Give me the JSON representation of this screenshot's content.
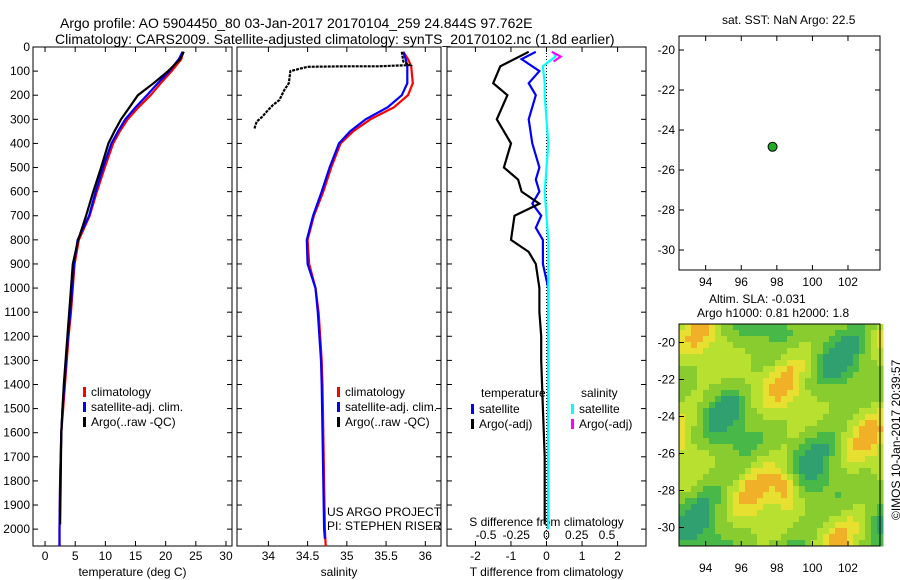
{
  "header": {
    "title_line1": "Argo profile: AO 5904450_80 03-Jan-2017 20170104_259 24.844S 97.762E",
    "title_line2": "Climatology: CARS2009. Satellite-adjusted climatology: synTS_20170102.nc (1.8d earlier)"
  },
  "colors": {
    "climatology": "#ff0000",
    "satellite": "#0000ff",
    "argo": "#000000",
    "satellite_s": "#00ffff",
    "argo_s_adj": "#ff00ff",
    "float_marker": "#22aa22"
  },
  "chart_data": [
    {
      "type": "line",
      "id": "temperature",
      "xlabel": "temperature (deg C)",
      "xlim": [
        -2,
        31
      ],
      "ylim": [
        2070,
        0
      ],
      "xticks": [
        0,
        5,
        10,
        15,
        20,
        25,
        30
      ],
      "yticks": [
        0,
        100,
        200,
        300,
        400,
        500,
        600,
        700,
        800,
        900,
        1000,
        1100,
        1200,
        1300,
        1400,
        1500,
        1600,
        1700,
        1800,
        1900,
        2000
      ],
      "legend": [
        "climatology",
        "satellite-adj. clim.",
        "Argo(..raw -QC)"
      ],
      "series": [
        {
          "name": "climatology",
          "color": "#ff0000",
          "x": [
            22.9,
            22.6,
            21.0,
            19.2,
            17.5,
            15.5,
            13.7,
            12.4,
            11.3,
            9.9,
            8.6,
            7.4,
            5.6,
            4.9,
            4.6,
            4.3,
            3.9,
            3.6,
            3.3,
            3.0,
            2.7,
            2.5,
            2.4,
            2.4
          ],
          "y": [
            20,
            50,
            100,
            150,
            200,
            250,
            300,
            350,
            400,
            500,
            600,
            700,
            800,
            900,
            1000,
            1100,
            1200,
            1300,
            1400,
            1500,
            1600,
            1800,
            2000,
            2070
          ]
        },
        {
          "name": "satellite-adj. clim.",
          "color": "#0000ff",
          "x": [
            22.8,
            22.2,
            20.6,
            18.7,
            16.9,
            15.0,
            13.3,
            12.1,
            11.0,
            9.6,
            8.4,
            7.3,
            5.4,
            4.8,
            4.5,
            4.2,
            3.8,
            3.5,
            3.2,
            2.9,
            2.7,
            2.5,
            2.4,
            2.4
          ],
          "y": [
            20,
            50,
            100,
            150,
            200,
            250,
            300,
            350,
            400,
            500,
            600,
            700,
            800,
            900,
            1000,
            1100,
            1200,
            1300,
            1400,
            1500,
            1600,
            1800,
            2000,
            2070
          ]
        },
        {
          "name": "Argo(..raw -QC)",
          "color": "#000000",
          "x": [
            23.0,
            22.4,
            20.4,
            18.0,
            15.4,
            14.0,
            12.6,
            11.5,
            10.5,
            9.3,
            8.0,
            6.8,
            5.5,
            4.6,
            4.3,
            4.0,
            3.7,
            3.4,
            3.1,
            2.9,
            2.7,
            2.6,
            2.5
          ],
          "y": [
            20,
            50,
            100,
            150,
            200,
            250,
            300,
            350,
            400,
            500,
            600,
            700,
            800,
            900,
            1000,
            1100,
            1200,
            1300,
            1400,
            1500,
            1600,
            1800,
            1980
          ]
        }
      ]
    },
    {
      "type": "line",
      "id": "salinity",
      "xlabel": "salinity",
      "xlim": [
        33.6,
        36.2
      ],
      "ylim": [
        2070,
        0
      ],
      "xticks": [
        34,
        34.5,
        35,
        35.5,
        36
      ],
      "legend": [
        "climatology",
        "satellite-adj. clim.",
        "Argo(..raw -QC)"
      ],
      "annotation": [
        "US ARGO PROJECT",
        "PI: STEPHEN RISER"
      ],
      "series": [
        {
          "name": "climatology",
          "color": "#ff0000",
          "x": [
            35.72,
            35.78,
            35.82,
            35.84,
            35.78,
            35.6,
            35.3,
            35.08,
            34.92,
            34.8,
            34.7,
            34.58,
            34.5,
            34.52,
            34.6,
            34.64,
            34.66,
            34.68,
            34.69,
            34.7,
            34.71,
            34.72,
            34.73
          ],
          "y": [
            20,
            50,
            80,
            150,
            200,
            250,
            300,
            350,
            400,
            500,
            600,
            700,
            800,
            900,
            1000,
            1100,
            1200,
            1300,
            1400,
            1600,
            1800,
            2000,
            2070
          ]
        },
        {
          "name": "satellite-adj. clim.",
          "color": "#0000ff",
          "x": [
            35.72,
            35.75,
            35.77,
            35.77,
            35.7,
            35.52,
            35.24,
            35.04,
            34.9,
            34.78,
            34.68,
            34.57,
            34.49,
            34.5,
            34.6,
            34.63,
            34.65,
            34.67,
            34.68,
            34.69,
            34.7,
            34.71,
            34.72
          ],
          "y": [
            20,
            50,
            80,
            150,
            200,
            250,
            300,
            350,
            400,
            500,
            600,
            700,
            800,
            900,
            1000,
            1100,
            1200,
            1300,
            1400,
            1600,
            1800,
            2000,
            2040
          ]
        },
        {
          "name": "Argo(..raw -QC)",
          "color": "#000000",
          "x": [
            35.7,
            35.72,
            35.8,
            35.4,
            35.0,
            34.5,
            34.28,
            34.26,
            34.2,
            34.14,
            34.06,
            34.0,
            33.92,
            33.85,
            33.82
          ],
          "y": [
            20,
            60,
            75,
            80,
            80,
            82,
            100,
            150,
            180,
            220,
            240,
            260,
            290,
            310,
            340
          ]
        }
      ]
    },
    {
      "type": "line",
      "id": "difference",
      "xlabel": "T difference from climatology",
      "x2label": "S difference from climatology",
      "xlim": [
        -2.8,
        2.8
      ],
      "ylim": [
        2070,
        0
      ],
      "xticks": [
        -2,
        -1,
        0,
        1,
        2
      ],
      "x2ticks": [
        "-0.5",
        "-0.25",
        "0",
        "0.25",
        "0.5"
      ],
      "legend_headers": [
        "temperature",
        "salinity"
      ],
      "legend": [
        "satellite",
        "Argo(-adj)",
        "satellite",
        "Argo(-adj)"
      ],
      "series": [
        {
          "name": "temperature satellite",
          "color": "#0000ff",
          "x": [
            -0.3,
            -0.7,
            -0.2,
            -0.5,
            -0.3,
            -0.5,
            -0.4,
            -0.2,
            -0.3,
            -0.2,
            -0.4,
            -0.15,
            -0.3,
            -0.1,
            -0.1,
            0.05,
            0.05,
            0.05,
            0.05,
            0.05,
            0.05,
            0.05
          ],
          "y": [
            20,
            50,
            100,
            150,
            200,
            300,
            400,
            500,
            550,
            600,
            650,
            700,
            750,
            800,
            900,
            1000,
            1100,
            1200,
            1300,
            1500,
            1800,
            2000
          ]
        },
        {
          "name": "temperature Argo(-adj)",
          "color": "#000000",
          "x": [
            -0.5,
            -1.3,
            -1.5,
            -1.1,
            -1.4,
            -1.0,
            -1.2,
            -0.8,
            -0.7,
            -0.2,
            -0.9,
            -1.0,
            -0.5,
            -0.3,
            -0.2,
            -0.2,
            -0.15,
            -0.15,
            -0.1,
            -0.05,
            -0.05,
            -0.05
          ],
          "y": [
            20,
            80,
            150,
            200,
            300,
            400,
            500,
            550,
            600,
            650,
            700,
            800,
            850,
            900,
            1000,
            1100,
            1200,
            1300,
            1500,
            1700,
            1850,
            1980
          ]
        },
        {
          "name": "salinity satellite",
          "color": "#00ffff",
          "x": [
            0.2,
            0.25,
            -0.1,
            -0.05,
            -0.05,
            0.0,
            0.05,
            0.0,
            -0.05,
            0.0,
            0.05,
            0.05,
            0.05,
            0.05,
            0.05,
            0.05,
            0.05,
            0.05
          ],
          "y": [
            20,
            40,
            80,
            150,
            200,
            300,
            400,
            500,
            600,
            700,
            800,
            900,
            1000,
            1200,
            1400,
            1600,
            1800,
            2000
          ]
        },
        {
          "name": "salinity Argo(-adj)",
          "color": "#ff00ff",
          "x": [
            0.15,
            0.4,
            0.2
          ],
          "y": [
            20,
            40,
            60
          ]
        }
      ]
    },
    {
      "type": "scatter",
      "id": "location-map",
      "title": "sat. SST: NaN  Argo: 22.5",
      "xlim": [
        92.5,
        103.8
      ],
      "ylim": [
        -31,
        -19.3
      ],
      "xticks": [
        94,
        96,
        98,
        100,
        102
      ],
      "yticks": [
        -20,
        -22,
        -24,
        -26,
        -28,
        -30
      ],
      "x": [
        97.76
      ],
      "y": [
        -24.84
      ]
    },
    {
      "type": "heatmap",
      "id": "altimetry-map",
      "title": [
        "Altim. SLA: -0.031",
        "Argo h1000: 0.81  h2000: 1.8"
      ],
      "xlim": [
        92.5,
        103.8
      ],
      "ylim": [
        -31,
        -19
      ],
      "xticks": [
        94,
        96,
        98,
        100,
        102
      ],
      "yticks": [
        -20,
        -22,
        -24,
        -26,
        -28,
        -30
      ]
    }
  ],
  "footer": {
    "credit": "©IMOS 10-Jan-2017 20:39:57"
  }
}
